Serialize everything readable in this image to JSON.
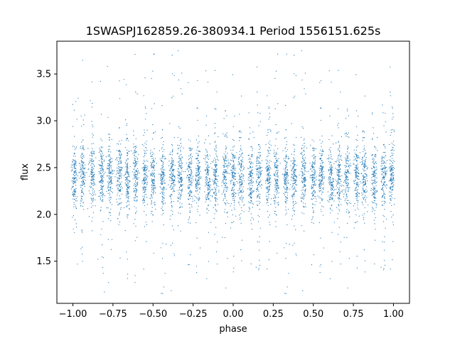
{
  "chart_data": {
    "type": "scatter",
    "title": "1SWASPJ162859.26-380934.1 Period 1556151.625s",
    "xlabel": "phase",
    "ylabel": "flux",
    "xlim": [
      -1.1,
      1.1
    ],
    "ylim": [
      1.05,
      3.85
    ],
    "x_ticks": [
      -1.0,
      -0.75,
      -0.5,
      -0.25,
      0.0,
      0.25,
      0.5,
      0.75,
      1.0
    ],
    "x_tick_labels": [
      "−1.00",
      "−0.75",
      "−0.50",
      "−0.25",
      "0.00",
      "0.25",
      "0.50",
      "0.75",
      "1.00"
    ],
    "y_ticks": [
      1.5,
      2.0,
      2.5,
      3.0,
      3.5
    ],
    "y_tick_labels": [
      "1.5",
      "2.0",
      "2.5",
      "3.0",
      "3.5"
    ],
    "grid": false,
    "marker_color": "#1f77b4",
    "series": [
      {
        "name": "",
        "description_of_distribution": "dense vertical clusters of points",
        "cluster_centers_x": [
          -0.99,
          -0.94,
          -0.88,
          -0.82,
          -0.77,
          -0.71,
          -0.66,
          -0.61,
          -0.55,
          -0.5,
          -0.44,
          -0.38,
          -0.33,
          -0.27,
          -0.22,
          -0.16,
          -0.11,
          -0.05,
          0.0,
          0.05,
          0.11,
          0.16,
          0.22,
          0.27,
          0.33,
          0.38,
          0.44,
          0.5,
          0.55,
          0.61,
          0.66,
          0.71,
          0.77,
          0.82,
          0.88,
          0.94,
          0.99
        ],
        "typical_flux": 2.4,
        "core_range": [
          2.1,
          2.75
        ],
        "outlier_range": [
          1.15,
          3.75
        ]
      }
    ]
  }
}
